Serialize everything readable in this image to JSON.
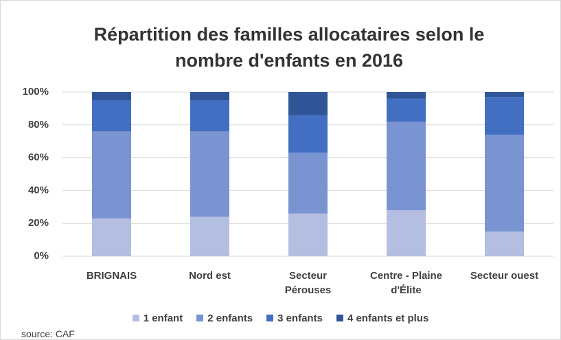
{
  "chart_data": {
    "type": "stacked_bar",
    "title": "Répartition des familles allocataires selon le nombre d'enfants en 2016",
    "categories": [
      "BRIGNAIS",
      "Nord est",
      "Secteur Pérouses",
      "Centre - Plaine d'Élite",
      "Secteur ouest"
    ],
    "series": [
      {
        "name": "1 enfant",
        "color": "#b4bee0",
        "values": [
          23,
          24,
          26,
          28,
          15
        ]
      },
      {
        "name": "2 enfants",
        "color": "#7a93d1",
        "values": [
          53,
          52,
          37,
          54,
          59
        ]
      },
      {
        "name": "3 enfants",
        "color": "#426fc1",
        "values": [
          19,
          19,
          23,
          14,
          23
        ]
      },
      {
        "name": "4 enfants et plus",
        "color": "#2f5597",
        "values": [
          5,
          5,
          14,
          4,
          3
        ]
      }
    ],
    "ylim": [
      0,
      100
    ],
    "yticks": [
      {
        "value": 0,
        "label": "0%"
      },
      {
        "value": 20,
        "label": "20%"
      },
      {
        "value": 40,
        "label": "40%"
      },
      {
        "value": 60,
        "label": "60%"
      },
      {
        "value": 80,
        "label": "80%"
      },
      {
        "value": 100,
        "label": "100%"
      }
    ],
    "grid": true,
    "legend": "bottom",
    "source": "source: CAF"
  }
}
